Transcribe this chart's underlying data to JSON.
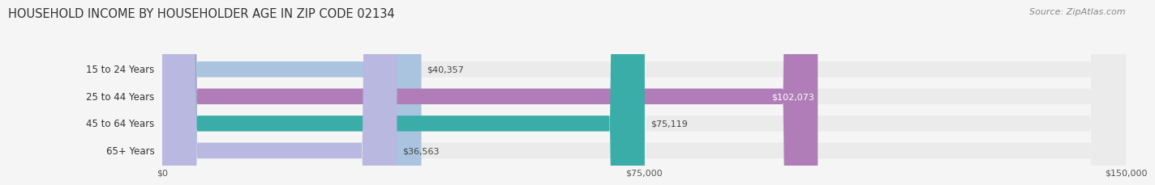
{
  "title": "HOUSEHOLD INCOME BY HOUSEHOLDER AGE IN ZIP CODE 02134",
  "source": "Source: ZipAtlas.com",
  "categories": [
    "15 to 24 Years",
    "25 to 44 Years",
    "45 to 64 Years",
    "65+ Years"
  ],
  "values": [
    40357,
    102073,
    75119,
    36563
  ],
  "bar_colors": [
    "#aac4e0",
    "#b07db8",
    "#3aada8",
    "#b8b8e0"
  ],
  "bar_bg_color": "#ebebeb",
  "value_labels": [
    "$40,357",
    "$102,073",
    "$75,119",
    "$36,563"
  ],
  "value_label_colors": [
    "#444444",
    "#ffffff",
    "#444444",
    "#444444"
  ],
  "xlim": [
    0,
    150000
  ],
  "xtick_labels": [
    "$0",
    "$75,000",
    "$150,000"
  ],
  "xtick_values": [
    0,
    75000,
    150000
  ],
  "background_color": "#f5f5f5",
  "title_fontsize": 10.5,
  "source_fontsize": 8,
  "label_fontsize": 8.5,
  "value_fontsize": 8,
  "bar_height": 0.58,
  "figsize": [
    14.06,
    2.33
  ],
  "dpi": 100
}
